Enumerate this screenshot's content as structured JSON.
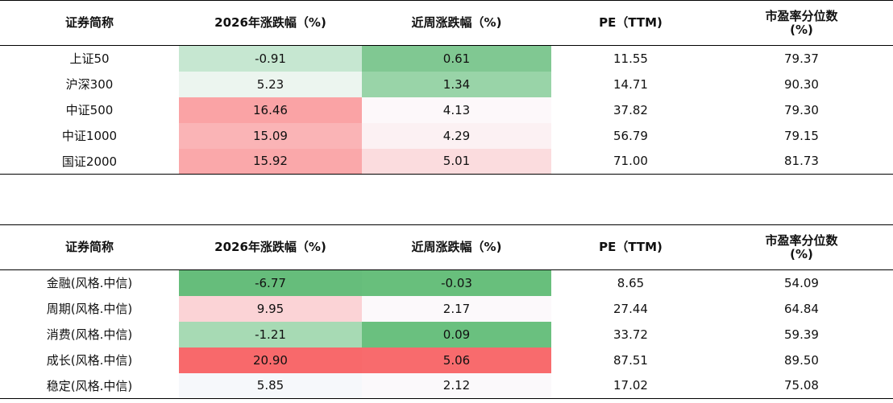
{
  "tables": [
    {
      "headers": [
        "证券简称",
        "2026年涨跌幅（%)",
        "近周涨跌幅（%)",
        "PE（TTM)",
        "市盈率分位数\n(%)"
      ],
      "rows": [
        {
          "name": "上证50",
          "ytd": "-0.91",
          "ytd_color": "#c6e7d1",
          "week": "0.61",
          "week_color": "#80c892",
          "pe": "11.55",
          "pct": "79.37"
        },
        {
          "name": "沪深300",
          "ytd": "5.23",
          "ytd_color": "#ecf5ef",
          "week": "1.34",
          "week_color": "#99d4a8",
          "pe": "14.71",
          "pct": "90.30"
        },
        {
          "name": "中证500",
          "ytd": "16.46",
          "ytd_color": "#faa3a5",
          "week": "4.13",
          "week_color": "#fdf8fa",
          "pe": "37.82",
          "pct": "79.30"
        },
        {
          "name": "中证1000",
          "ytd": "15.09",
          "ytd_color": "#fab4b6",
          "week": "4.29",
          "week_color": "#fcf1f3",
          "pe": "56.79",
          "pct": "79.15"
        },
        {
          "name": "国证2000",
          "ytd": "15.92",
          "ytd_color": "#faa8aa",
          "week": "5.01",
          "week_color": "#fbdcde",
          "pe": "71.00",
          "pct": "81.73"
        }
      ]
    },
    {
      "headers": [
        "证券简称",
        "2026年涨跌幅（%)",
        "近周涨跌幅（%)",
        "PE（TTM)",
        "市盈率分位数\n(%)"
      ],
      "rows": [
        {
          "name": "金融(风格.中信)",
          "ytd": "-6.77",
          "ytd_color": "#66bd7b",
          "week": "-0.03",
          "week_color": "#68bf7c",
          "pe": "8.65",
          "pct": "54.09"
        },
        {
          "name": "周期(风格.中信)",
          "ytd": "9.95",
          "ytd_color": "#fbd3d6",
          "week": "2.17",
          "week_color": "#fcf9fb",
          "pe": "27.44",
          "pct": "64.84"
        },
        {
          "name": "消费(风格.中信)",
          "ytd": "-1.21",
          "ytd_color": "#a7dab4",
          "week": "0.09",
          "week_color": "#6ac07f",
          "pe": "33.72",
          "pct": "59.39"
        },
        {
          "name": "成长(风格.中信)",
          "ytd": "20.90",
          "ytd_color": "#f8696b",
          "week": "5.06",
          "week_color": "#f86b6d",
          "pe": "87.51",
          "pct": "89.50"
        },
        {
          "name": "稳定(风格.中信)",
          "ytd": "5.85",
          "ytd_color": "#f6f8fb",
          "week": "2.12",
          "week_color": "#fbf9fb",
          "pe": "17.02",
          "pct": "75.08"
        }
      ]
    }
  ]
}
